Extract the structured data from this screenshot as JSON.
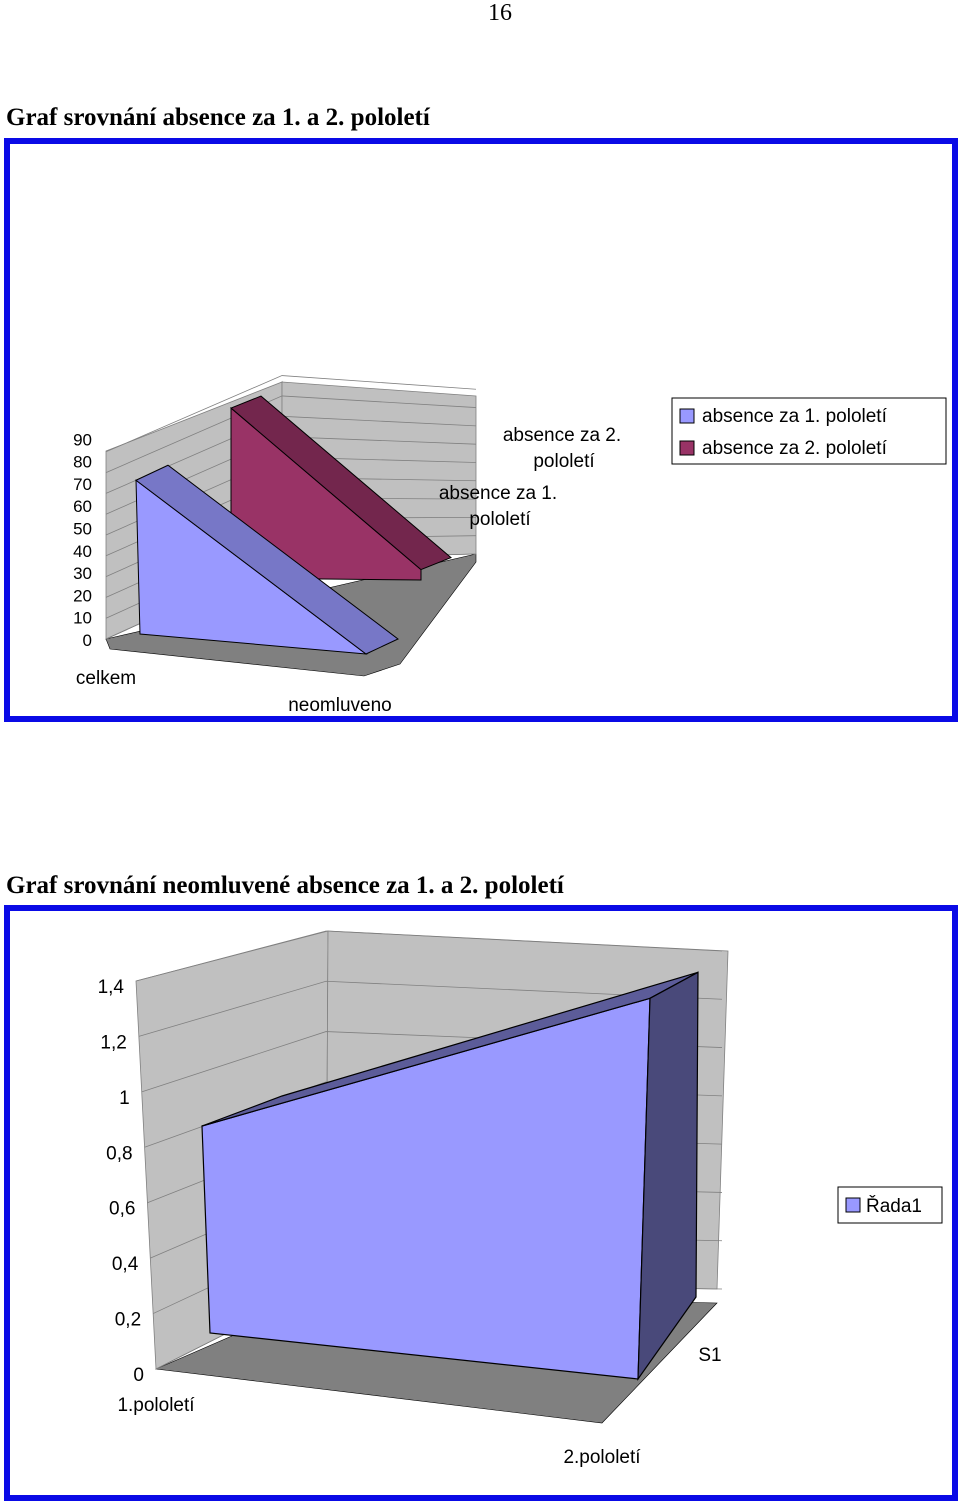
{
  "page": {
    "number": "16"
  },
  "sections": [
    {
      "title": "Graf srovnání absence za 1. a 2. pololetí"
    },
    {
      "title": "Graf srovnání neomluvené absence za 1. a 2. pololetí"
    }
  ],
  "colors": {
    "frame": "#0a0ae6",
    "series1": "#9999ff",
    "series2": "#993366",
    "wall": "#c0c0c0",
    "floor": "#808080"
  },
  "chart_data": [
    {
      "type": "area",
      "view": "3d",
      "categories": [
        "celkem",
        "neomluveno"
      ],
      "depth_labels": [
        "absence za 2. pololetí",
        "absence za 1. pololetí"
      ],
      "series": [
        {
          "name": "absence za 1. pololetí",
          "values": [
            80,
            0
          ],
          "color": "#9999ff"
        },
        {
          "name": "absence za 2. pololetí",
          "values": [
            86,
            5
          ],
          "color": "#993366"
        }
      ],
      "y_ticks": [
        "0",
        "10",
        "20",
        "30",
        "40",
        "50",
        "60",
        "70",
        "80",
        "90"
      ],
      "ylim": [
        0,
        90
      ],
      "grid": true,
      "legend": "right"
    },
    {
      "type": "area",
      "view": "3d",
      "categories": [
        "1.pololetí",
        "2.pololetí"
      ],
      "depth_labels": [
        "S1"
      ],
      "series": [
        {
          "name": "Řada1",
          "values": [
            1,
            1.35
          ],
          "color": "#9999ff"
        }
      ],
      "y_ticks": [
        "0",
        "0,2",
        "0,4",
        "0,6",
        "0,8",
        "1",
        "1,2",
        "1,4"
      ],
      "ylim": [
        0,
        1.4
      ],
      "grid": true,
      "legend": "right"
    }
  ]
}
